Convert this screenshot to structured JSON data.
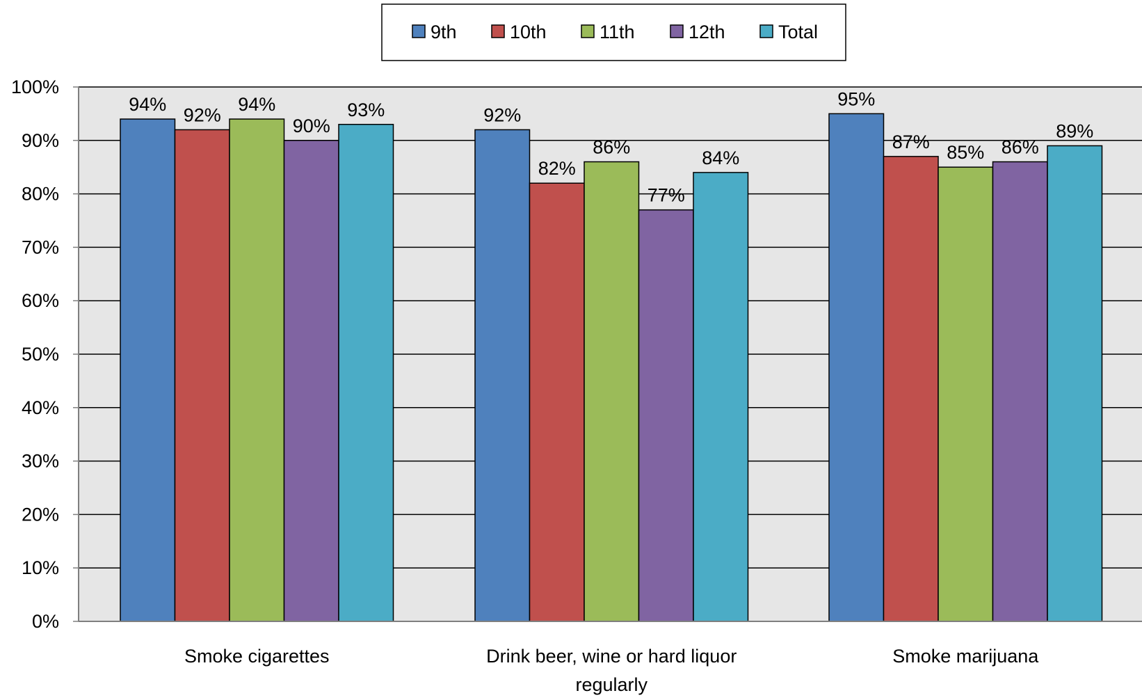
{
  "chart_data": {
    "type": "bar",
    "categories": [
      [
        "Smoke cigarettes"
      ],
      [
        "Drink beer, wine or hard liquor",
        "regularly"
      ],
      [
        "Smoke marijuana"
      ]
    ],
    "series": [
      {
        "name": "9th",
        "color": "#4F81BD",
        "values": [
          94,
          92,
          95
        ]
      },
      {
        "name": "10th",
        "color": "#C0504D",
        "values": [
          92,
          82,
          87
        ]
      },
      {
        "name": "11th",
        "color": "#9BBB59",
        "values": [
          94,
          86,
          85
        ]
      },
      {
        "name": "12th",
        "color": "#8064A2",
        "values": [
          90,
          77,
          86
        ]
      },
      {
        "name": "Total",
        "color": "#4BACC6",
        "values": [
          93,
          84,
          89
        ]
      }
    ],
    "value_suffix": "%",
    "y_ticks": [
      "0%",
      "10%",
      "20%",
      "30%",
      "40%",
      "50%",
      "60%",
      "70%",
      "80%",
      "90%",
      "100%"
    ],
    "ylim": [
      0,
      100
    ],
    "grid": true,
    "plot_background": "#E6E6E6",
    "legend_position": "top-center",
    "title": "",
    "xlabel": "",
    "ylabel": ""
  }
}
